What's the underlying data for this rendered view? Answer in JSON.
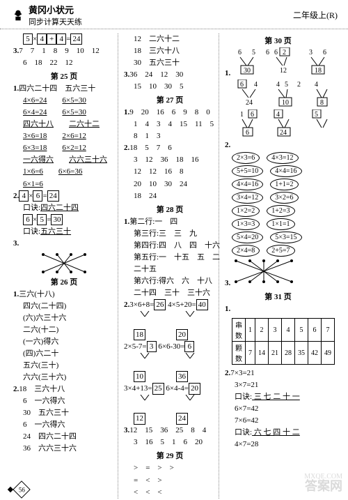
{
  "header": {
    "brand": "黄冈小状元",
    "subtitle": "同步计算天天练",
    "grade": "二年级上(R)"
  },
  "col1": {
    "eq1": {
      "a": "5",
      "b": "4",
      "op": "+",
      "c": "4",
      "r": "24"
    },
    "seq3": {
      "label": "3.",
      "row1": "7　7　1　8　9　10　12",
      "row2": "6　18　22　12"
    },
    "p25": "第 25 页",
    "s1": {
      "label": "1.",
      "t": "四六二十四　五六三十",
      "r": [
        [
          "4×6=24",
          "6×5=30"
        ],
        [
          "6×4=24",
          "6×5=30"
        ],
        [
          "四六十八",
          "二六十二"
        ],
        [
          "3×6=18",
          "2×6=12"
        ],
        [
          "6×3=18",
          "6×2=12"
        ],
        [
          "一六得六",
          "六六三十六"
        ],
        [
          "1×6=6",
          "6×6=36"
        ],
        [
          "6×1=6",
          ""
        ]
      ]
    },
    "s2": {
      "label": "2.",
      "e1": {
        "a": "4",
        "b": "6",
        "r": "24"
      },
      "k1l": "口诀:",
      "k1": "四六二十四",
      "e2": {
        "a": "6",
        "b": "5",
        "r": "30"
      },
      "k2l": "口诀:",
      "k2": "五六三十"
    },
    "p26": "第 26 页",
    "s26": {
      "label": "1.",
      "items": [
        "三六(十八)",
        "四六(二十四)",
        "(六)六三十六",
        "二六(十二)",
        "(一六)得六",
        "(四)六二十",
        "五六(三十)",
        "六六(三十六)"
      ]
    },
    "s26b": {
      "label": "2.",
      "items": [
        "18　三六十八",
        "6　一六得六",
        "30　五六三十",
        "6　一六得六",
        "24　四六二十四",
        "36　六六三十六"
      ]
    }
  },
  "col2": {
    "top": [
      "12　二六十二",
      "18　三六十八",
      "30　五六三十"
    ],
    "s3": {
      "label": "3.",
      "rows": [
        "36　24　12　30",
        "15　10　30　5"
      ]
    },
    "p27": "第 27 页",
    "s27a": {
      "label": "1.",
      "rows": [
        "9　20　16　6　9　8　0",
        "1　4　3　4　15　11　5",
        "8　1　3"
      ]
    },
    "s27b": {
      "label": "2.",
      "rows": [
        "18　5　7　6",
        "3　12　36　18　16",
        "12　12　16　8",
        "20　10　30　24",
        "18　24"
      ]
    },
    "p28": "第 28 页",
    "s28a": {
      "label": "1.",
      "rows": [
        "第二行:一　四",
        "第三行:三　三　九",
        "第四行:四　八　四　十六",
        "第五行:一　十五　五　二",
        "二十五",
        "第六行:得六　六　十八",
        "二十四　三十　三十六"
      ]
    },
    "s28b": {
      "label": "2.",
      "graphs": [
        {
          "eq": "3×6+8=",
          "r": "26",
          "eq2": "4×5+20=",
          "r2": "40",
          "b1": "18",
          "b2": "20"
        },
        {
          "eq": "2×5-7=",
          "r": "3",
          "eq2": "6×6-30=",
          "r2": "6",
          "b1": "10",
          "b2": "36"
        },
        {
          "eq": "3×4+13=",
          "r": "25",
          "eq2": "6×4-4=",
          "r2": "20",
          "b1": "12",
          "b2": "24"
        }
      ]
    },
    "s28c": {
      "label": "3.",
      "rows": [
        "12　15　36　25　8　4",
        "3　16　5　1　6　20"
      ]
    },
    "p29": "第 29 页",
    "cmp": [
      ">　=　>　>",
      "=　<　>",
      "<　<　<"
    ]
  },
  "col3": {
    "p30": "第 30 页",
    "d1": {
      "label": "1.",
      "trees": [
        {
          "top": [
            "6",
            "5"
          ],
          "base": "30"
        },
        {
          "top": [
            "6"
          ],
          "mid": "2",
          "base": "12",
          "boxed_mid": true
        },
        {
          "top": [
            "3",
            "6"
          ],
          "base": "18"
        }
      ],
      "trees2": [
        {
          "top": [
            "6"
          ],
          "mid": "4",
          "base": "24",
          "boxed_top": true
        },
        {
          "top": [
            "4",
            "5"
          ],
          "mid": "2",
          "base": "10",
          "boxed_base": true
        },
        {
          "top": [
            "4"
          ],
          "mid": "",
          "base": "8",
          "boxed_base": true
        }
      ],
      "trees3": [
        {
          "top": [
            "1"
          ],
          "mid": "6",
          "base": "6",
          "boxed_mid": true,
          "boxed_base": true
        },
        {
          "top": [
            "4"
          ],
          "mid": "",
          "base": "24",
          "boxed_top": true,
          "boxed_base": true
        },
        {
          "top": [
            "5"
          ],
          "mid": "",
          "base": "",
          "boxed_top": true
        }
      ]
    },
    "d2": {
      "label": "2.",
      "pairs": [
        [
          "2×3=6",
          "4×3=12"
        ],
        [
          "5+5=10",
          "4×4=16"
        ],
        [
          "4×4=16",
          "1+1=2"
        ],
        [
          "3×4=12",
          "3×2=6"
        ],
        [
          "1×2=2",
          "1+2=3"
        ],
        [
          "1×3=3",
          "1×1=1"
        ],
        [
          "5×4=20",
          "5×3=15"
        ],
        [
          "2×4=8",
          "2+5=7"
        ]
      ]
    },
    "d3": {
      "label": "3."
    },
    "p31": "第 31 页",
    "table": {
      "label": "1.",
      "h": [
        "串数",
        "1",
        "2",
        "3",
        "4",
        "5",
        "6",
        "7"
      ],
      "r": [
        "颗数",
        "7",
        "14",
        "21",
        "28",
        "35",
        "42",
        "49"
      ]
    },
    "bottom": {
      "label": "2.",
      "lines": [
        "7×3=21",
        "3×7=21",
        "口诀: 三 七 二 十 一",
        "6×7=42",
        "7×6=42",
        "口诀: 六 七 四 十 二",
        "4×7=28"
      ]
    }
  },
  "footer": {
    "page": "56"
  }
}
